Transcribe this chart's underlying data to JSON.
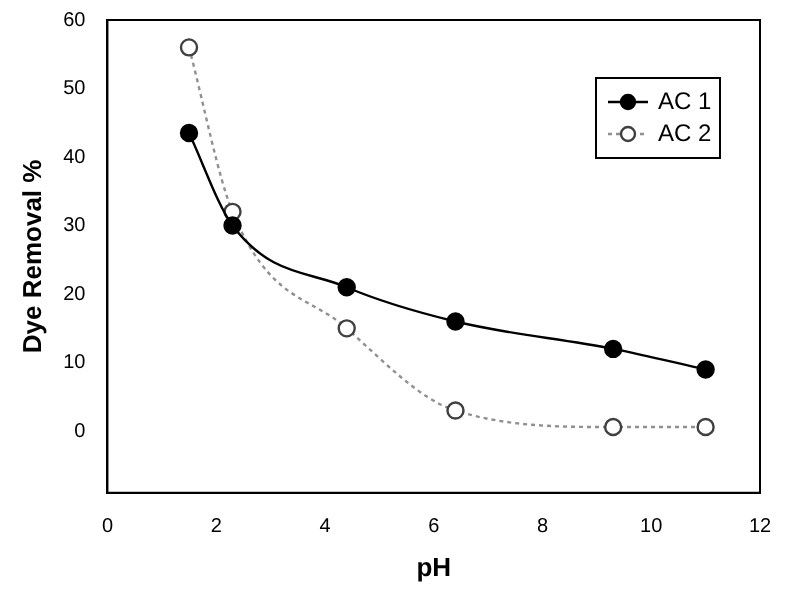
{
  "chart_data": {
    "type": "line",
    "xlabel": "pH",
    "ylabel": "Dye Removal %",
    "x": [
      1.5,
      2.3,
      4.4,
      6.4,
      9.3,
      11
    ],
    "series": [
      {
        "name": "AC 1",
        "color": "#000000",
        "values": [
          43.5,
          30,
          21,
          16,
          12,
          9
        ],
        "line_style": "solid",
        "marker": "circle"
      },
      {
        "name": "AC 2",
        "color": "#909090",
        "values": [
          56,
          32,
          15,
          3,
          0.6,
          0.6
        ],
        "line_style": "dotted",
        "marker": "circle"
      }
    ],
    "xlim": [
      0,
      12
    ],
    "xticks": [
      0,
      2,
      4,
      6,
      8,
      10,
      12
    ],
    "ylim": [
      -9,
      60
    ],
    "yticks": [
      0,
      10,
      20,
      30,
      40,
      50,
      60
    ],
    "grid": false,
    "legend": "top right"
  }
}
